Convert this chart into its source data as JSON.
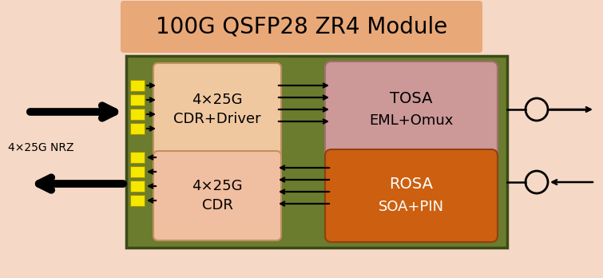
{
  "title": "100G QSFP28 ZR4 Module",
  "title_fontsize": 20,
  "bg_color": "#f5d8c5",
  "title_box_color": "#e8a878",
  "module_bg_color": "#6b7c2e",
  "module_edge_color": "#3a4a18",
  "cdr_driver_box_color": "#f0c8a0",
  "cdr_box_color": "#f0bea0",
  "tosa_box_color": "#cc9898",
  "rosa_box_color": "#cc6010",
  "yellow_pad_color": "#f5e800",
  "label_4x25g_nrz": "4×25G NRZ",
  "label_cdr_driver_line1": "4×25G",
  "label_cdr_driver_line2": "CDR+Driver",
  "label_cdr_line1": "4×25G",
  "label_cdr_line2": "CDR",
  "label_tosa_line1": "TOSA",
  "label_tosa_line2": "EML+Omux",
  "label_rosa_line1": "ROSA",
  "label_rosa_line2": "SOA+PIN"
}
